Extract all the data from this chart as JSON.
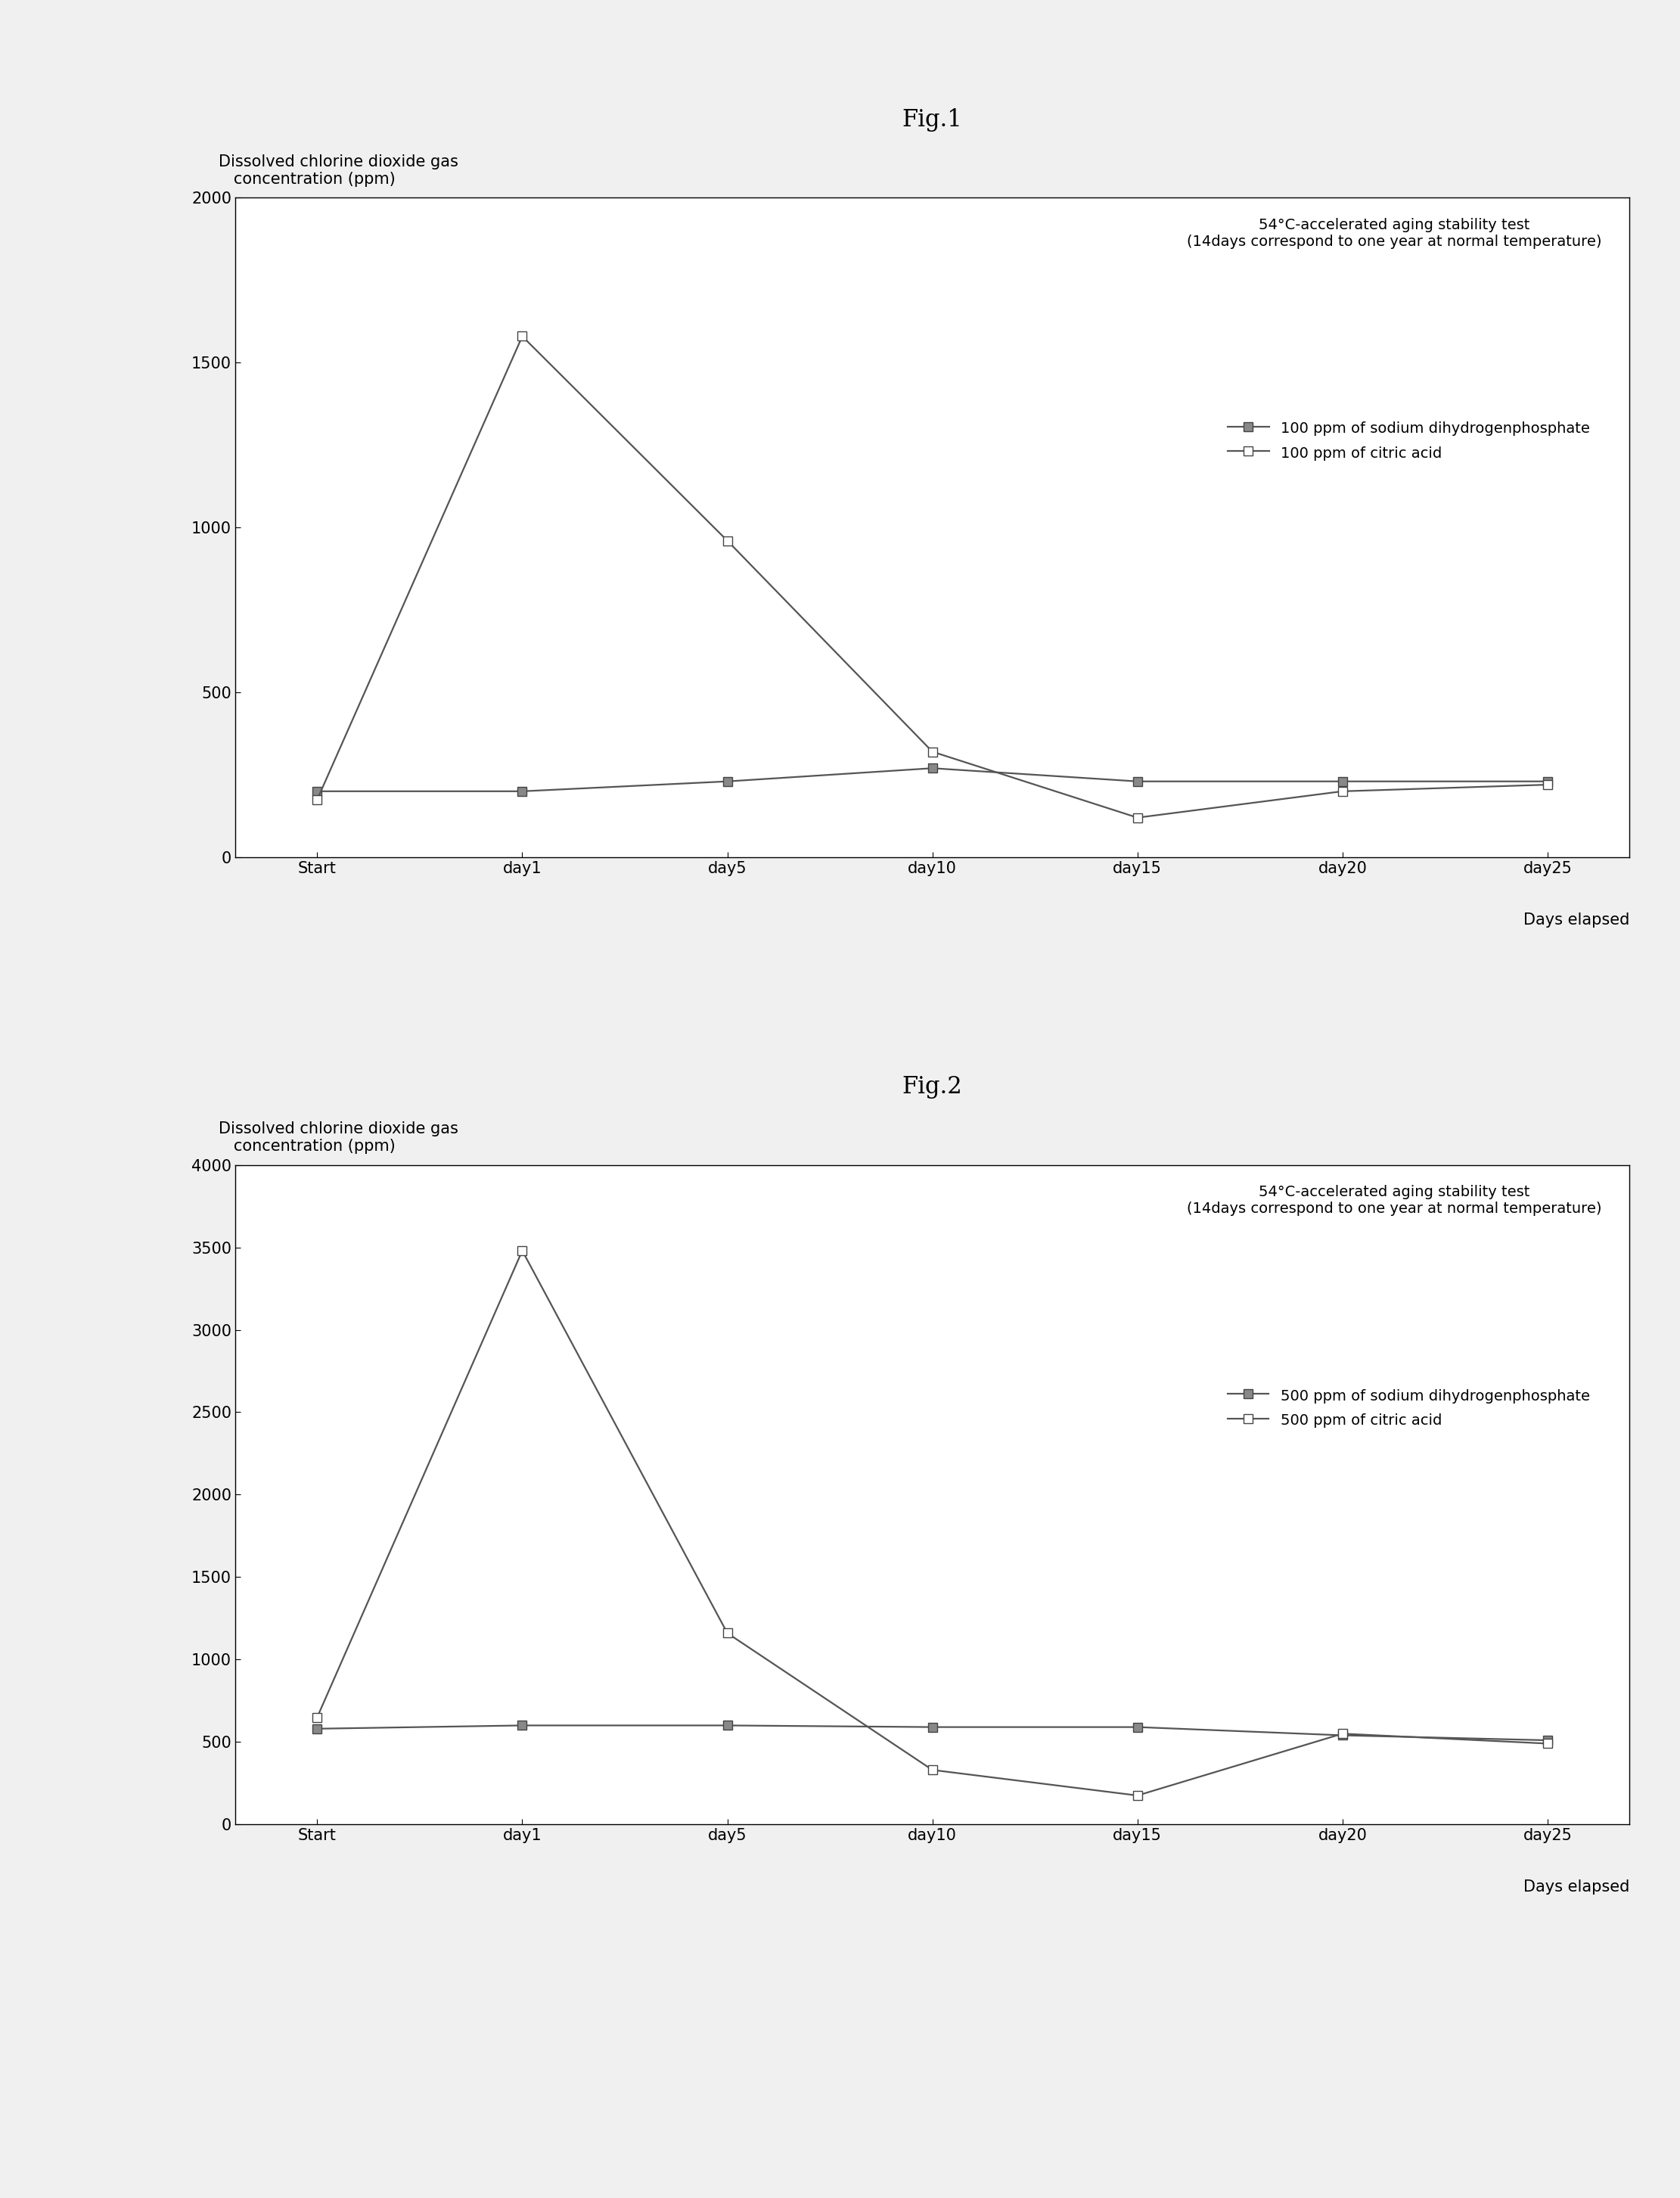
{
  "fig1_title": "Fig.1",
  "fig2_title": "Fig.2",
  "ylabel_line1": "Dissolved chlorine dioxide gas",
  "ylabel_line2": "   concentration (ppm)",
  "xlabel": "Days elapsed",
  "annotation1": "54°C-accelerated aging stability test\n(14days correspond to one year at normal temperature)",
  "annotation2": "54°C-accelerated aging stability test\n(14days correspond to one year at normal temperature)",
  "x_labels": [
    "Start",
    "day1",
    "day5",
    "day10",
    "day15",
    "day20",
    "day25"
  ],
  "x_values": [
    0,
    1,
    2,
    3,
    4,
    5,
    6
  ],
  "fig1_series1_label": "100 ppm of sodium dihydrogenphosphate",
  "fig1_series2_label": "100 ppm of citric acid",
  "fig1_series1_values": [
    200,
    200,
    230,
    270,
    230,
    230,
    230
  ],
  "fig1_series2_values": [
    175,
    1580,
    960,
    320,
    120,
    200,
    220
  ],
  "fig1_ylim": [
    0,
    2000
  ],
  "fig1_yticks": [
    0,
    500,
    1000,
    1500,
    2000
  ],
  "fig2_series1_label": "500 ppm of sodium dihydrogenphosphate",
  "fig2_series2_label": "500 ppm of citric acid",
  "fig2_series1_values": [
    580,
    600,
    600,
    590,
    590,
    540,
    510
  ],
  "fig2_series2_values": [
    650,
    3480,
    1160,
    330,
    175,
    550,
    490
  ],
  "fig2_ylim": [
    0,
    4000
  ],
  "fig2_yticks": [
    0,
    500,
    1000,
    1500,
    2000,
    2500,
    3000,
    3500,
    4000
  ],
  "line_color": "#555555",
  "marker_size": 8,
  "line_width": 1.6,
  "bg_color": "#ffffff",
  "fig_bg_color": "#f0f0f0",
  "title_fontsize": 22,
  "label_fontsize": 15,
  "tick_fontsize": 15,
  "legend_fontsize": 14,
  "annotation_fontsize": 14
}
